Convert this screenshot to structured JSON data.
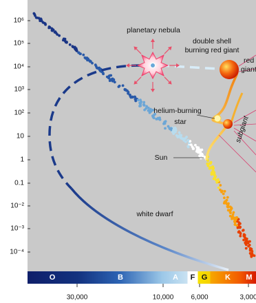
{
  "y_axis": {
    "labels": [
      "10⁶",
      "10⁵",
      "10⁴",
      "10³",
      "10²",
      "10",
      "1",
      "0.1",
      "10⁻²",
      "10⁻³",
      "10⁻⁴"
    ]
  },
  "x_axis": {
    "labels": [
      "30,000",
      "10,000",
      "6,000",
      "3,000"
    ]
  },
  "spectral_classes": [
    "O",
    "B",
    "A",
    "F",
    "G",
    "K",
    "M"
  ],
  "annotations": {
    "planetary_nebula": "planetary nebula",
    "double_shell_1": "double shell",
    "double_shell_2": "burning red giant",
    "red_giant_1": "red",
    "red_giant_2": "giant",
    "helium_1": "helium-burning",
    "helium_2": "star",
    "subgiant": "subgiant",
    "sun": "Sun",
    "white_dwarf": "white dwarf"
  }
}
